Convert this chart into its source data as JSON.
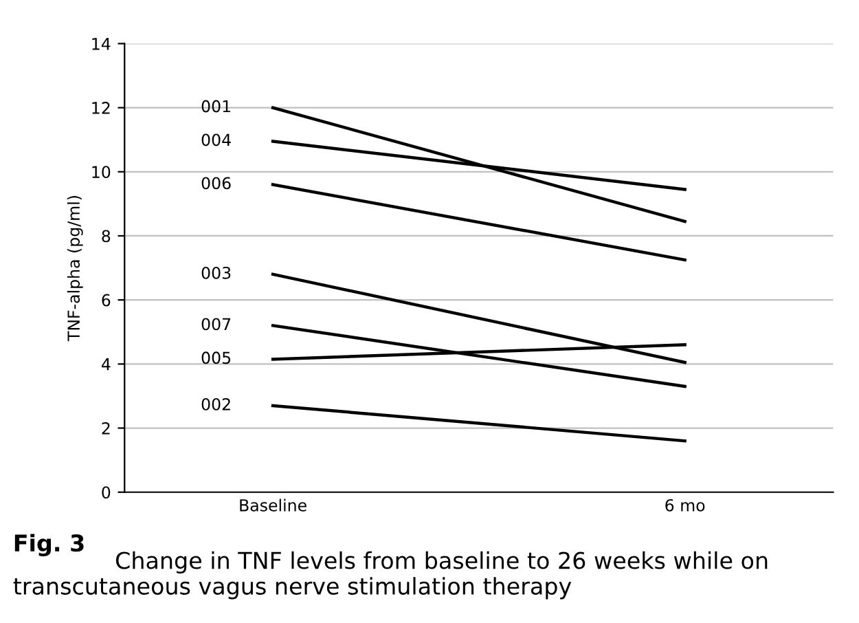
{
  "chart_data": {
    "type": "line",
    "ylabel": "TNF-alpha (pg/ml)",
    "categories": [
      "Baseline",
      "6 mo"
    ],
    "series": [
      {
        "name": "001",
        "color": "#000000",
        "values": [
          12.0,
          8.45
        ]
      },
      {
        "name": "004",
        "color": "#000000",
        "values": [
          10.95,
          9.45
        ]
      },
      {
        "name": "006",
        "color": "#000000",
        "values": [
          9.6,
          7.25
        ]
      },
      {
        "name": "003",
        "color": "#000000",
        "values": [
          6.8,
          4.05
        ]
      },
      {
        "name": "007",
        "color": "#000000",
        "values": [
          5.2,
          3.3
        ]
      },
      {
        "name": "005",
        "color": "#000000",
        "values": [
          4.15,
          4.6
        ]
      },
      {
        "name": "002",
        "color": "#000000",
        "values": [
          2.7,
          1.6
        ]
      }
    ],
    "ylim": [
      0,
      14
    ],
    "yticks": [
      0,
      2,
      4,
      6,
      8,
      10,
      12,
      14
    ],
    "grid": "y",
    "legend": false,
    "marker": "none",
    "line_style": "solid",
    "annotations": [
      "Fig. 3",
      "Change in TNF levels from baseline to 26 weeks while on transcutaneous vagus nerve stimulation therapy"
    ]
  }
}
